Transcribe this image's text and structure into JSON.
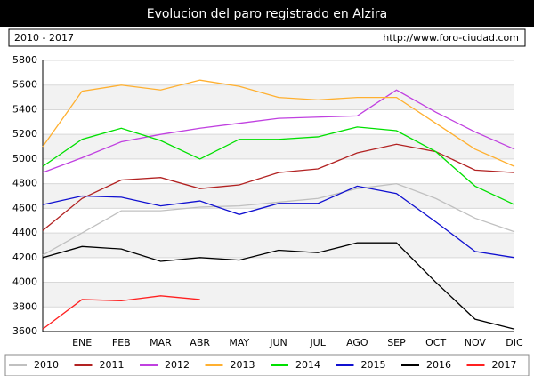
{
  "chart_data": {
    "type": "line",
    "title": "Evolucion del paro registrado en Alzira",
    "subtitle": "2010 - 2017",
    "source": "http://www.foro-ciudad.com",
    "categories": [
      null,
      "ENE",
      "FEB",
      "MAR",
      "ABR",
      "MAY",
      "JUN",
      "JUL",
      "AGO",
      "SEP",
      "OCT",
      "NOV",
      "DIC"
    ],
    "series": [
      {
        "name": "2010",
        "color": "#c0c0c0",
        "values": [
          4220,
          4400,
          4580,
          4580,
          4610,
          4620,
          4650,
          4680,
          4760,
          4800,
          4680,
          4520,
          4410
        ]
      },
      {
        "name": "2011",
        "color": "#b22222",
        "values": [
          4420,
          4680,
          4830,
          4850,
          4760,
          4790,
          4890,
          4920,
          5050,
          5120,
          5060,
          4910,
          4890
        ]
      },
      {
        "name": "2012",
        "color": "#c040e0",
        "values": [
          4890,
          5010,
          5140,
          5200,
          5250,
          5290,
          5330,
          5340,
          5350,
          5560,
          5380,
          5220,
          5080
        ]
      },
      {
        "name": "2013",
        "color": "#ffb030",
        "values": [
          5100,
          5550,
          5600,
          5560,
          5640,
          5590,
          5500,
          5480,
          5500,
          5500,
          5290,
          5080,
          4940
        ]
      },
      {
        "name": "2014",
        "color": "#00e000",
        "values": [
          4940,
          5160,
          5250,
          5150,
          5000,
          5160,
          5160,
          5180,
          5260,
          5230,
          5060,
          4780,
          4630
        ]
      },
      {
        "name": "2015",
        "color": "#1010d0",
        "values": [
          4630,
          4700,
          4690,
          4620,
          4660,
          4550,
          4640,
          4640,
          4780,
          4720,
          4490,
          4250,
          4200
        ]
      },
      {
        "name": "2016",
        "color": "#000000",
        "values": [
          4200,
          4290,
          4270,
          4170,
          4200,
          4180,
          4260,
          4240,
          4320,
          4320,
          4000,
          3700,
          3620
        ]
      },
      {
        "name": "2017",
        "color": "#ff2020",
        "values": [
          3620,
          3860,
          3850,
          3890,
          3860,
          null,
          null,
          null,
          null,
          null,
          null,
          null,
          null
        ]
      }
    ],
    "ylim": [
      3600,
      5800
    ],
    "yticks": [
      3600,
      3800,
      4000,
      4200,
      4400,
      4600,
      4800,
      5000,
      5200,
      5400,
      5600,
      5800
    ],
    "grid": true
  }
}
